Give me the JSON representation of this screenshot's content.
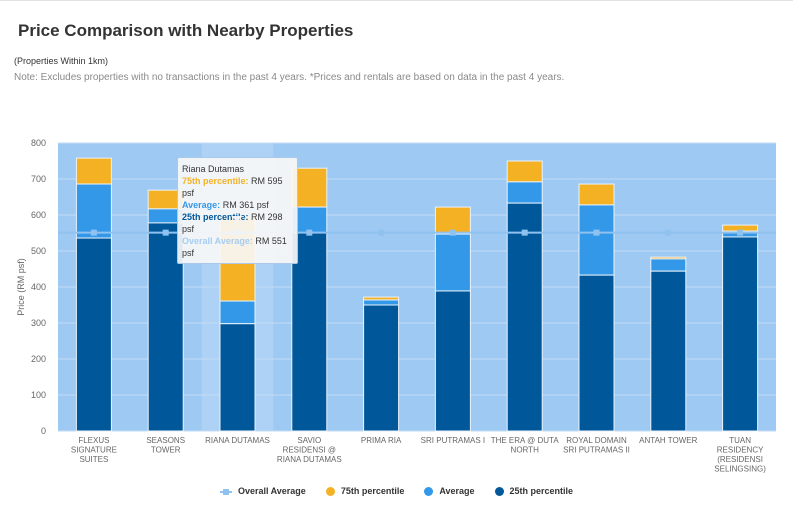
{
  "header": {
    "title": "Price Comparison with Nearby Properties",
    "subtitle": "(Properties Within 1km)",
    "note": "Note: Excludes properties with no transactions in the past 4 years. *Prices and rentals are based on data in the past 4 years."
  },
  "tooltip": {
    "name": "Riana Dutamas",
    "p75_label": "75th percentile:",
    "p75_value": "RM 595 psf",
    "avg_label": "Average:",
    "avg_value": "RM 361 psf",
    "p25_label": "25th percentile:",
    "p25_value": "RM 298 psf",
    "overall_label": "Overall Average:",
    "overall_value": "RM 551 psf"
  },
  "colors": {
    "plot_bg": "#9ec9f2",
    "p75": "#f4b124",
    "avg": "#3498e8",
    "p25": "#00579a",
    "overall": "#90c2f0",
    "highlight": "#b9d8f6"
  },
  "legend": {
    "overall": "Overall Average",
    "p75": "75th percentile",
    "avg": "Average",
    "p25": "25th percentile"
  },
  "chart_data": {
    "type": "bar",
    "stacked": true,
    "title": "Price Comparison with Nearby Properties",
    "xlabel": "",
    "ylabel": "Price (RM psf)",
    "ylim": [
      0,
      800
    ],
    "yticks": [
      0,
      100,
      200,
      300,
      400,
      500,
      600,
      700,
      800
    ],
    "grid": true,
    "legend_position": "bottom",
    "highlighted_category": "RIANA DUTAMAS",
    "categories": [
      [
        "FLEXUS",
        "SIGNATURE",
        "SUITES"
      ],
      [
        "SEASONS",
        "TOWER"
      ],
      [
        "RIANA DUTAMAS"
      ],
      [
        "SAVIO",
        "RESIDENSI @",
        "RIANA DUTAMAS"
      ],
      [
        "PRIMA RIA"
      ],
      [
        "SRI PUTRAMAS I"
      ],
      [
        "THE ERA @ DUTA",
        "NORTH"
      ],
      [
        "ROYAL DOMAIN",
        "SRI PUTRAMAS II"
      ],
      [
        "ANTAH TOWER"
      ],
      [
        "TUAN",
        "RESIDENCY",
        "(RESIDENSI",
        "SELINGSING)"
      ]
    ],
    "series": [
      {
        "name": "25th percentile",
        "values": [
          536,
          578,
          298,
          550,
          350,
          389,
          633,
          433,
          444,
          539
        ]
      },
      {
        "name": "Average",
        "values": [
          686,
          617,
          361,
          622,
          364,
          547,
          692,
          628,
          478,
          555
        ]
      },
      {
        "name": "75th percentile",
        "values": [
          758,
          669,
          595,
          730,
          372,
          622,
          750,
          686,
          483,
          572
        ]
      },
      {
        "name": "Overall Average",
        "type": "line",
        "values": [
          551,
          551,
          551,
          551,
          551,
          551,
          551,
          551,
          551,
          551
        ]
      }
    ]
  }
}
